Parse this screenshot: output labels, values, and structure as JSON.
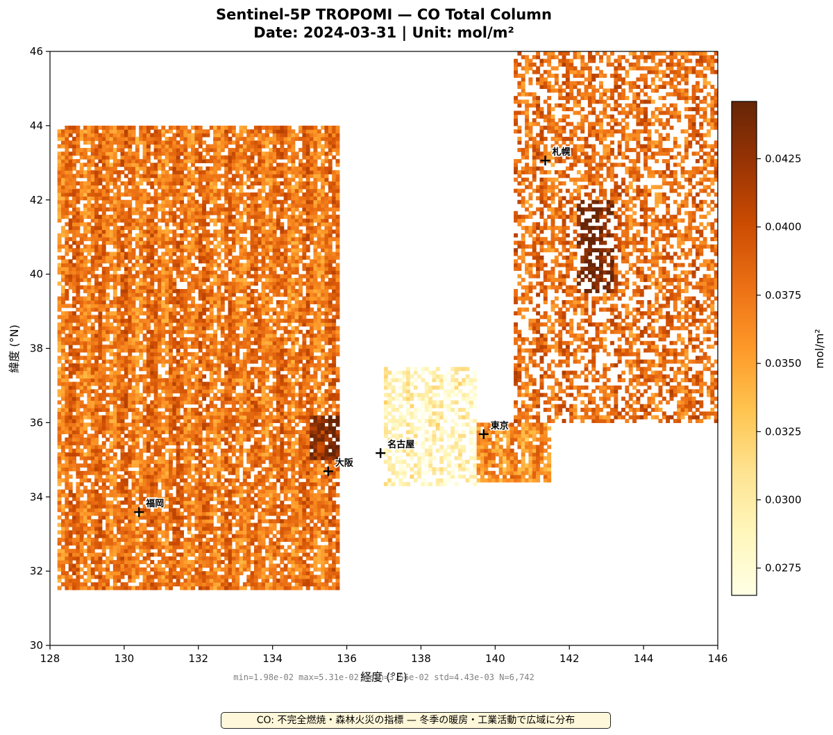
{
  "title_line1": "Sentinel-5P TROPOMI — CO Total Column",
  "title_line2": "Date: 2024-03-31  |  Unit: mol/m²",
  "stats_text": "min=1.98e-02  max=5.31e-02  mean=3.56e-02  std=4.43e-03  N=6,742",
  "note_text": "CO: 不完全燃焼・森林火災の指標 — 冬季の暖房・工業活動で広域に分布",
  "chart_data": {
    "type": "heatmap",
    "title": "Sentinel-5P TROPOMI — CO Total Column\nDate: 2024-03-31  |  Unit: mol/m²",
    "xlabel": "経度 (°E)",
    "ylabel": "緯度 (°N)",
    "xlim": [
      128,
      146
    ],
    "ylim": [
      30,
      46
    ],
    "xticks": [
      128,
      130,
      132,
      134,
      136,
      138,
      140,
      142,
      144,
      146
    ],
    "yticks": [
      30,
      32,
      34,
      36,
      38,
      40,
      42,
      44,
      46
    ],
    "grid": false,
    "colormap": "YlOrBr",
    "colorbar": {
      "label": "mol/m²",
      "vmin": 0.0265,
      "vmax": 0.0446,
      "ticks": [
        "0.0275",
        "0.0300",
        "0.0325",
        "0.0350",
        "0.0375",
        "0.0400",
        "0.0425"
      ]
    },
    "colormap_stops": [
      "#ffffe5",
      "#fff7bc",
      "#fee391",
      "#fec44f",
      "#fe9929",
      "#ec7014",
      "#cc4c02",
      "#993404",
      "#662506"
    ],
    "approx_regions": [
      {
        "name": "West (Korea / Sea of Japan)",
        "lon": [
          128.2,
          135.8
        ],
        "lat": [
          31.5,
          44.0
        ],
        "mean_value": 0.0375
      },
      {
        "name": "Central Honshu (low)",
        "lon": [
          137.0,
          139.5
        ],
        "lat": [
          34.3,
          37.5
        ],
        "mean_value": 0.029
      },
      {
        "name": "Kanto",
        "lon": [
          139.5,
          141.5
        ],
        "lat": [
          34.4,
          36.0
        ],
        "mean_value": 0.036
      },
      {
        "name": "Hokkaido / North Pacific",
        "lon": [
          140.5,
          146.0
        ],
        "lat": [
          36.0,
          46.0
        ],
        "mean_value": 0.038
      },
      {
        "name": "Hotspot near Osaka",
        "lon": [
          135.0,
          136.0
        ],
        "lat": [
          35.0,
          36.2
        ],
        "mean_value": 0.043
      },
      {
        "name": "Hotspot east of Hokkaido",
        "lon": [
          142.2,
          143.2
        ],
        "lat": [
          39.5,
          42.0
        ],
        "mean_value": 0.044
      }
    ],
    "cities": [
      {
        "name": "札幌",
        "lon": 141.35,
        "lat": 43.06
      },
      {
        "name": "東京",
        "lon": 139.69,
        "lat": 35.69
      },
      {
        "name": "名古屋",
        "lon": 136.91,
        "lat": 35.18
      },
      {
        "name": "大阪",
        "lon": 135.5,
        "lat": 34.69
      },
      {
        "name": "福岡",
        "lon": 130.4,
        "lat": 33.59
      }
    ]
  }
}
